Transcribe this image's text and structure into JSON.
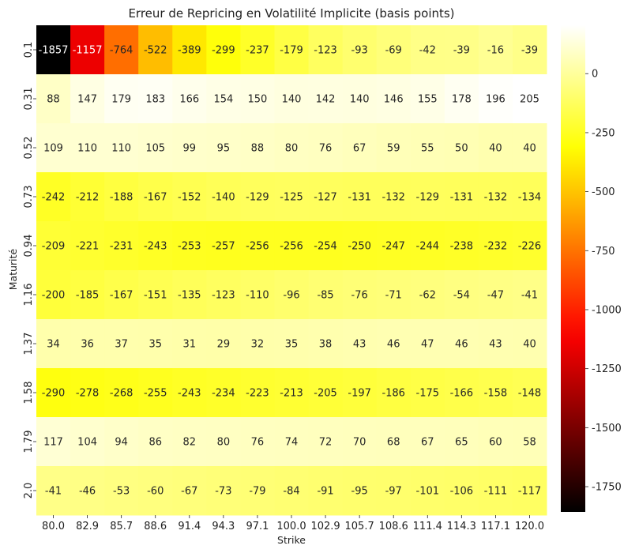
{
  "chart_data": {
    "type": "heatmap",
    "title": "Erreur de Repricing en Volatilité Implicite (basis points)",
    "xlabel": "Strike",
    "ylabel": "Maturité",
    "x": [
      "80.0",
      "82.9",
      "85.7",
      "88.6",
      "91.4",
      "94.3",
      "97.1",
      "100.0",
      "102.9",
      "105.7",
      "108.6",
      "111.4",
      "114.3",
      "117.1",
      "120.0"
    ],
    "y": [
      "0.1",
      "0.31",
      "0.52",
      "0.73",
      "0.94",
      "1.16",
      "1.37",
      "1.58",
      "1.79",
      "2.0"
    ],
    "values": [
      [
        -1857,
        -1157,
        -764,
        -522,
        -389,
        -299,
        -237,
        -179,
        -123,
        -93,
        -69,
        -42,
        -39,
        -16,
        -39
      ],
      [
        88,
        147,
        179,
        183,
        166,
        154,
        150,
        140,
        142,
        140,
        146,
        155,
        178,
        196,
        205
      ],
      [
        109,
        110,
        110,
        105,
        99,
        95,
        88,
        80,
        76,
        67,
        59,
        55,
        50,
        40,
        40
      ],
      [
        -242,
        -212,
        -188,
        -167,
        -152,
        -140,
        -129,
        -125,
        -127,
        -131,
        -132,
        -129,
        -131,
        -132,
        -134
      ],
      [
        -209,
        -221,
        -231,
        -243,
        -253,
        -257,
        -256,
        -256,
        -254,
        -250,
        -247,
        -244,
        -238,
        -232,
        -226
      ],
      [
        -200,
        -185,
        -167,
        -151,
        -135,
        -123,
        -110,
        -96,
        -85,
        -76,
        -71,
        -62,
        -54,
        -47,
        -41
      ],
      [
        34,
        36,
        37,
        35,
        31,
        29,
        32,
        35,
        38,
        43,
        46,
        47,
        46,
        43,
        40
      ],
      [
        -290,
        -278,
        -268,
        -255,
        -243,
        -234,
        -223,
        -213,
        -205,
        -197,
        -186,
        -175,
        -166,
        -158,
        -148
      ],
      [
        117,
        104,
        94,
        86,
        82,
        80,
        76,
        74,
        72,
        70,
        68,
        67,
        65,
        60,
        58
      ],
      [
        -41,
        -46,
        -53,
        -60,
        -67,
        -73,
        -79,
        -84,
        -91,
        -95,
        -97,
        -101,
        -106,
        -111,
        -117
      ]
    ],
    "colormap": "hot",
    "vmin": -1857,
    "vmax": 205,
    "colorbar_ticks": [
      0,
      -250,
      -500,
      -750,
      -1000,
      -1250,
      -1500,
      -1750
    ]
  }
}
